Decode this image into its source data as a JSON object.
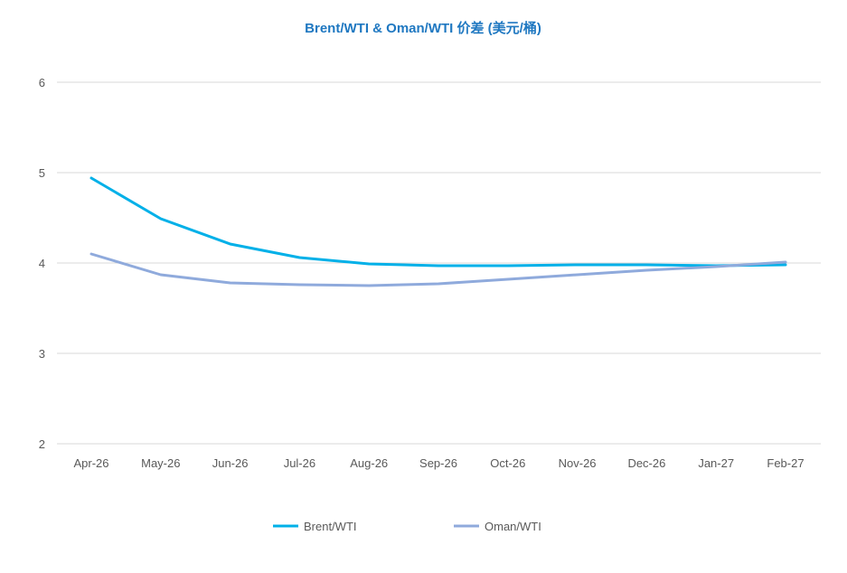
{
  "chart_data": {
    "type": "line",
    "title": "Brent/WTI & Oman/WTI 价差 (美元/桶)",
    "categories": [
      "Apr-26",
      "May-26",
      "Jun-26",
      "Jul-26",
      "Aug-26",
      "Sep-26",
      "Oct-26",
      "Nov-26",
      "Dec-26",
      "Jan-27",
      "Feb-27"
    ],
    "series": [
      {
        "name": "Brent/WTI",
        "color": "#00b0e8",
        "values": [
          4.94,
          4.49,
          4.21,
          4.06,
          3.99,
          3.97,
          3.97,
          3.98,
          3.98,
          3.97,
          3.98
        ]
      },
      {
        "name": "Oman/WTI",
        "color": "#8faadc",
        "values": [
          4.1,
          3.87,
          3.78,
          3.76,
          3.75,
          3.77,
          3.82,
          3.87,
          3.92,
          3.96,
          4.01
        ]
      }
    ],
    "yticks": [
      "2",
      "3",
      "4",
      "5",
      "6"
    ],
    "ylim": [
      2,
      6
    ],
    "grid": true,
    "legend": "bottom"
  }
}
